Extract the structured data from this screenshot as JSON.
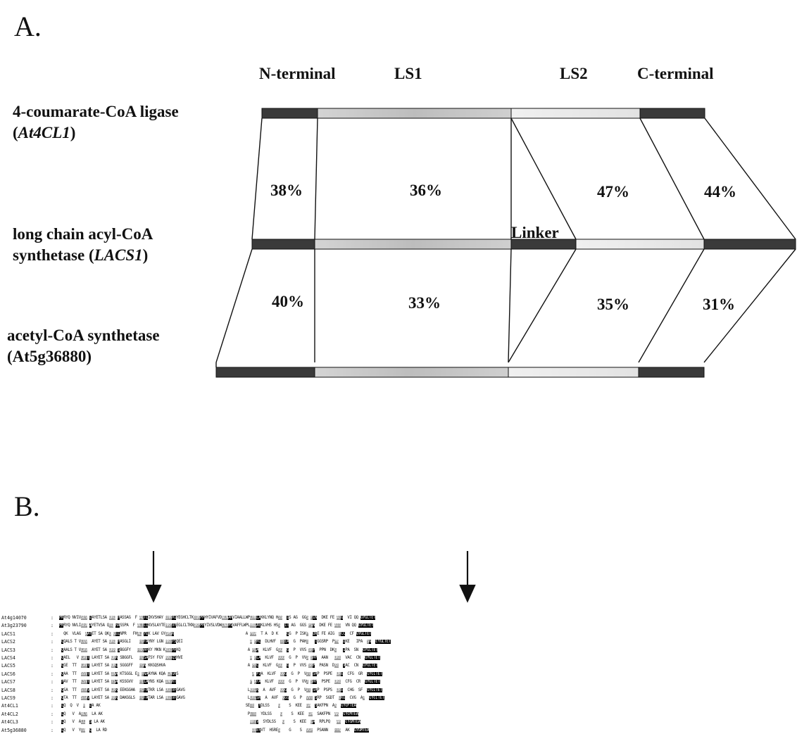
{
  "panels": {
    "a": "A.",
    "b": "B."
  },
  "domains": {
    "n_terminal": "N-terminal",
    "ls1": "LS1",
    "ls2": "LS2",
    "c_terminal": "C-terminal",
    "linker": "Linker"
  },
  "proteins": {
    "p1_line1": "4-coumarate-CoA ligase",
    "p1_line2_open": "(",
    "p1_line2_italic": "At4CL1",
    "p1_line2_close": ")",
    "p2_line1": "long chain acyl-CoA",
    "p2_line2_text": "synthetase (",
    "p2_line2_italic": "LACS1",
    "p2_line2_close": ")",
    "p3_line1": "acetyl-CoA synthetase",
    "p3_line2": "(At5g36880)"
  },
  "identity_top": [
    "38%",
    "36%",
    "47%",
    "44%"
  ],
  "identity_bottom": [
    "40%",
    "33%",
    "35%",
    "31%"
  ],
  "colors": {
    "dark_segment": "#3a3a3a",
    "ls1_segment": "#c4c4c4",
    "ls2_segment": "#e8e8e8",
    "outline": "#111111"
  },
  "alignment": {
    "rows": [
      {
        "name": "At4g14070",
        "seq": "PKRYQ NVIVSEV LAYETLSA QKQ HASSAG  F ALTLIKVSHAY EHKRIYEGHCLTKEQKPPHYIVAFVDWLWARVIAALLWPLHNLAKKLYNQ HSS  IS AG  GGS PIN  DKE FE AIG  VI QQ GYGLTET"
      },
      {
        "name": "At3g23790",
        "seq": "PKRYQ NVLISEA AYETVSA QKQ HASSPA  F ALTLIKVSLAYTEHKRVYEGLCLTKNQKPPHYIVSLVDWLWARVVAFFLWPLHNLAEKLVHS HSS  IT AG  GGS PIN  DKE FE AIG  VN QQ GYGLTET"
      },
      {
        "name": "LACS1",
        "seq": "  QK  VLAG  AAYET SA QKQ QELNPR   FHAL YEK LAV GYSMSK                                 A PHA  T A  D K    GG  P ISKP  DKE FE AIG  TCC  CF GYGLTET"
      },
      {
        "name": "LACS2",
        "seq": " GQALS T VCQV  AYET SA QKQ HASGLI    FDFAYNY LGN RKGFSQEI                               A PRL  DLHVF  TEEA  G  PAHE   TGGSRP  PPN  DKE   IPA  SN  GYGLTET"
      },
      {
        "name": "LACS3",
        "seq": " GAALS T VCAV  AYET SA QKK SBGGFY   FNFAFKY MKN KKGQPHKQ                               A PLA  KLVF  GGG  G  P  VVS SRP  PPN  DKE   IPA  SN  GYGLTET"
      },
      {
        "name": "LACS4",
        "seq": " GAEL   V CAVT LAYET SA QKK SBGGFL   FDSAFSY FGY KKGQSHVE                               A PLA  KLVF  GGG  G  P  VVS SRP  AAN   DKE  VAC  CN  GYGLTET"
      },
      {
        "name": "LACS5",
        "seq": " GGE  TT  CAVT LAYET SA QKQ SGGGFF   FGN KKGQSHVA                                      A PFC  KLVF  GGG  G  P  VVS SRP  PASN  DKE  VAC  CN  GYGLTET"
      },
      {
        "name": "LACS6",
        "seq": " GAA  TT  SSVT LAYET SA INA KTSGGL ER FNAAYNA KQA LNGKS                                  A PIA  KLVF  GGG  G  P  VVT SRP  PSPE  DKE  CFG  GR  GYGLTET"
      },
      {
        "name": "LACS7",
        "seq": " FAV  TT  CSVT LAYET SA TSA KSSGVV   FEIAYNS KQA INGKT                                  P AFA  KLVF  GGG  G  P  VVT SRP  PSPE  DKE  CFG  CR  GYGLTET"
      },
      {
        "name": "LACS8",
        "seq": " GSA  TT  STAV LAYET SA LKK EEKGGHA  FDFATKR LSA DGSVFGAVG                             LKKLK  A  AVF  GGG  G  P  VVT SRP  PSPS  DKE  CHG  SF  GYGLTET"
      },
      {
        "name": "LACS9",
        "seq": " GTA  TT  STAV LAYET SA KKK DAKGGLS  FDFATAR LSA NGSVFGAVG                             LEKLSK  A  AVF  GGG  G  P  VVT SRP  SGDT  DKE  CVG  AR  GYGLTET"
      },
      {
        "name": "At4CL1",
        "seq": " LQ  Q  V  R  LA AK                                                                   SETE  YDLSS    G    S  KEE  DA  SAKFPN  AK  GYGMTEA"
      },
      {
        "name": "At4CL2",
        "seq": " LQ   V  AHLV  LA AK                                                                   PETE  YDLSS    G    S  KEE  DA  SAKFPN  AK  GYGMTEA"
      },
      {
        "name": "At4CL3",
        "seq": " LQ   V  ALL  S LA AK                                                                   NRTV  SYDLSS   G    S  KEE  DA  RPLPQ   AK  GYGMTEA"
      },
      {
        "name": "At5g36880",
        "seq": " LQ   V  YTA  Q  LA RD                                                                   DDEFVT  HSRES    G    S  VGF  PSANN   FFN  AK  GYGMTEA"
      }
    ]
  }
}
